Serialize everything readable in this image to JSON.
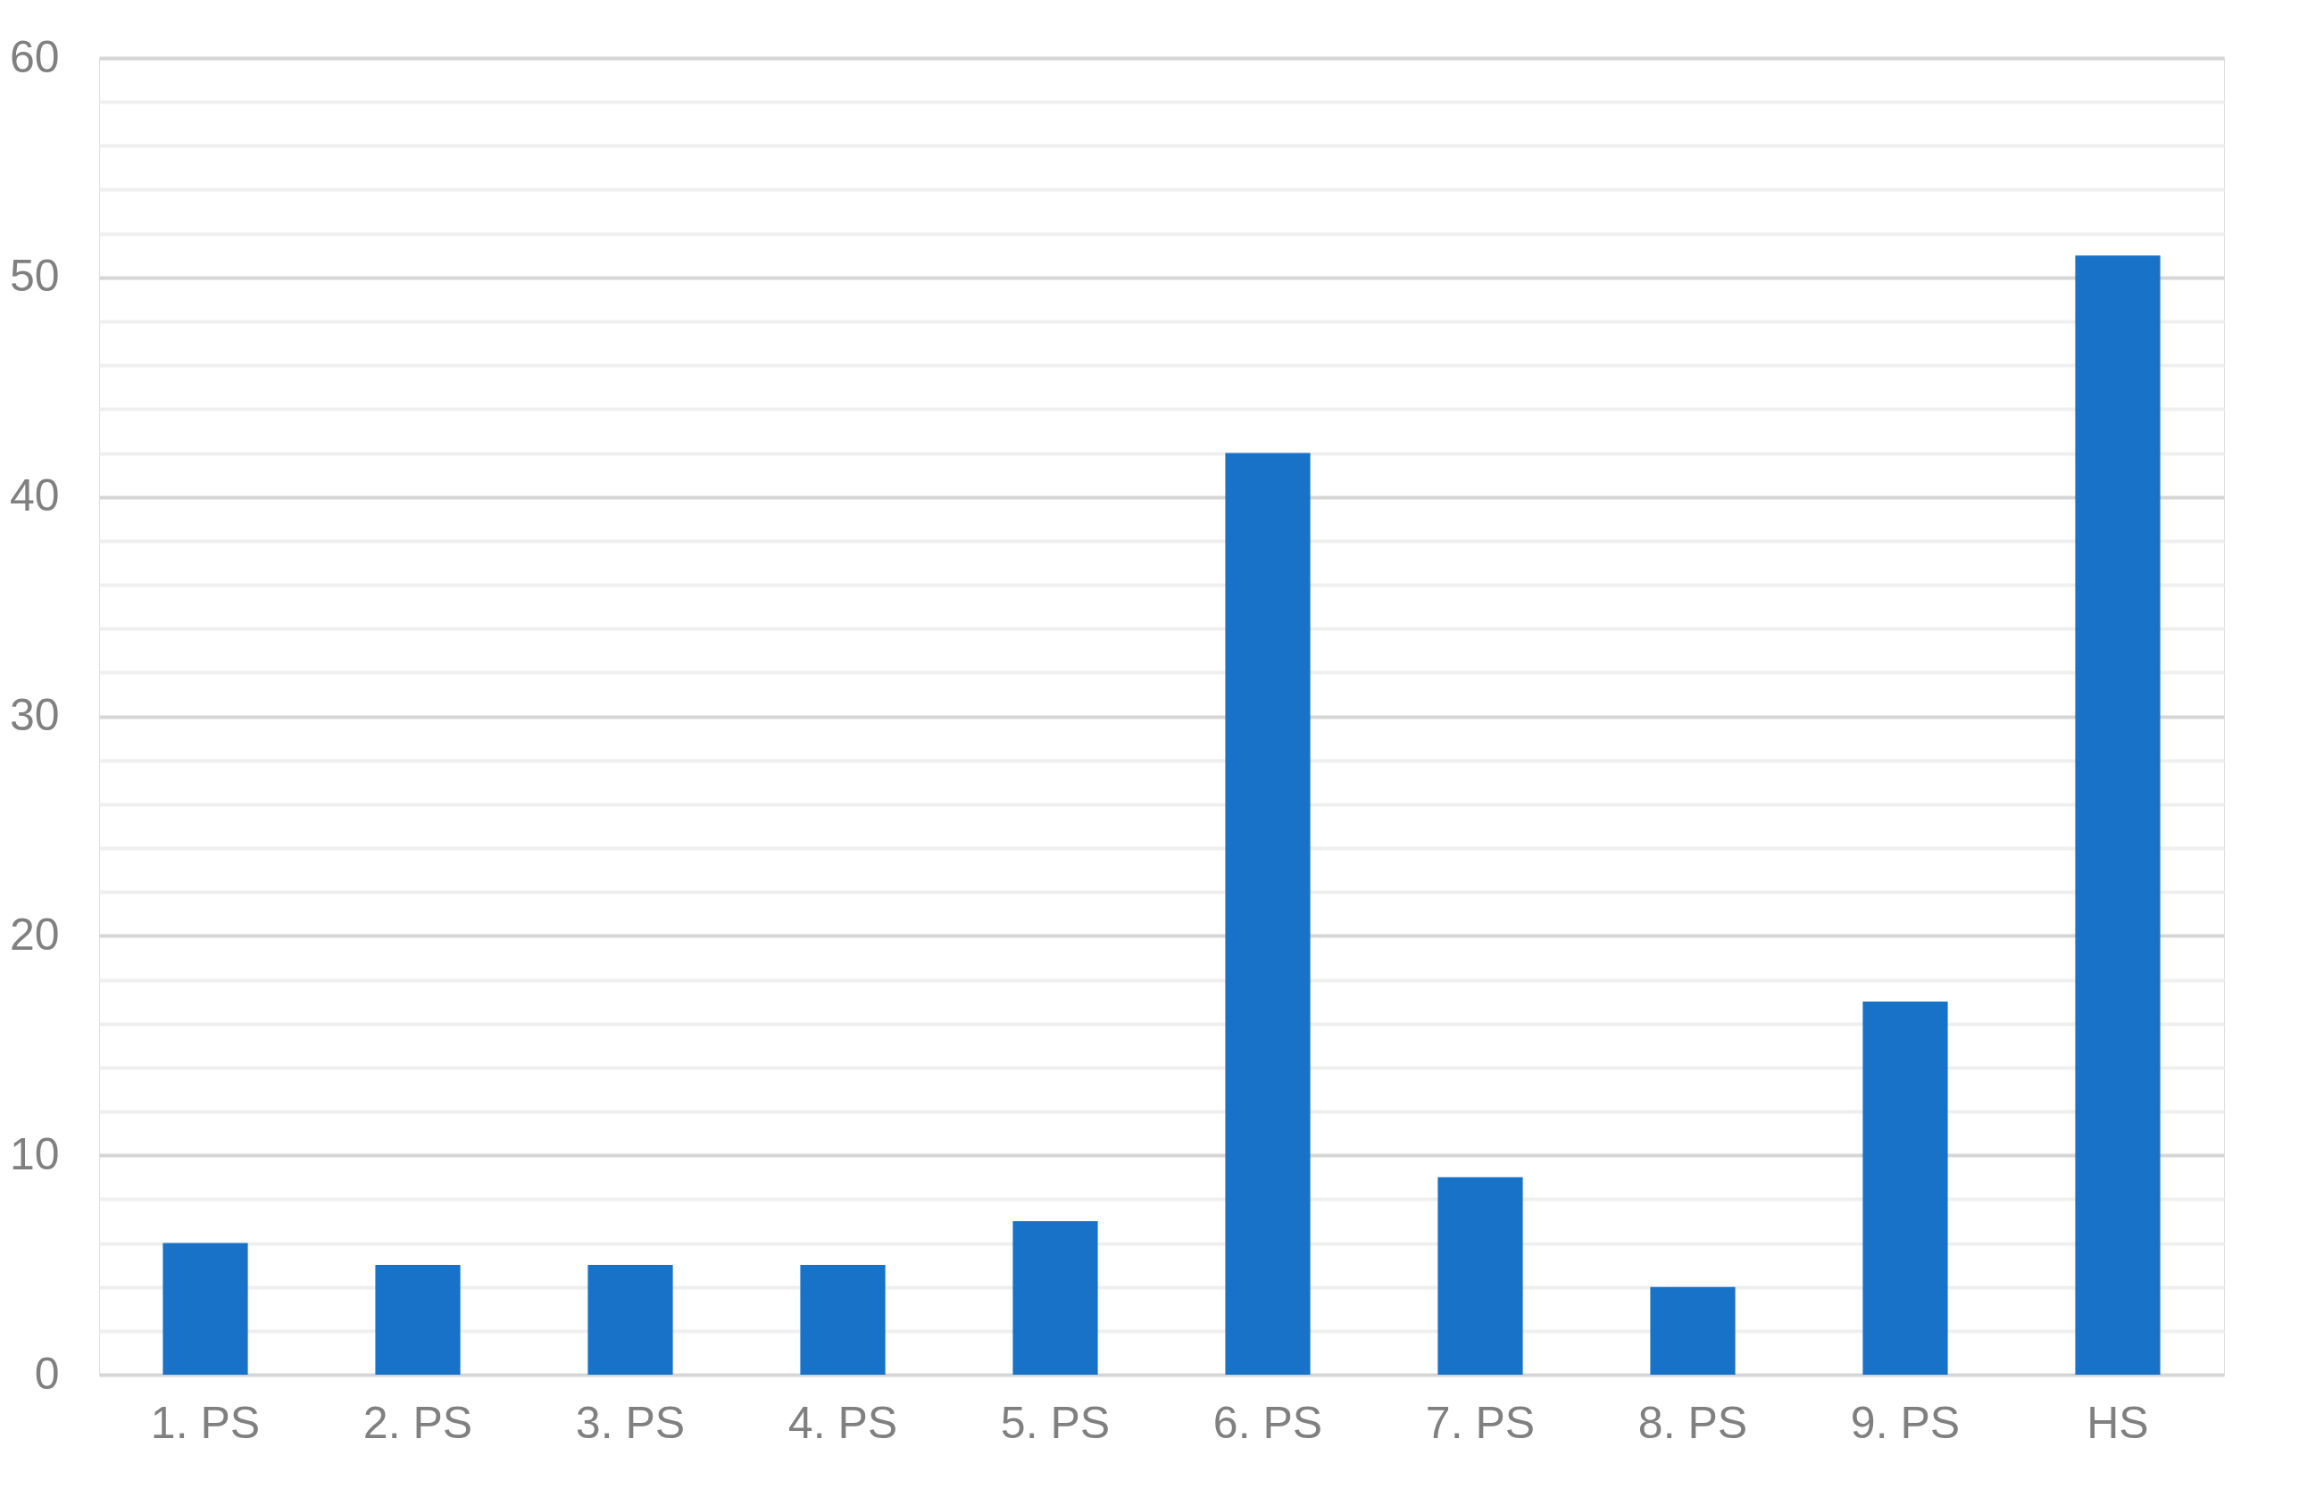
{
  "chart_data": {
    "type": "bar",
    "categories": [
      "1. PS",
      "2. PS",
      "3. PS",
      "4. PS",
      "5. PS",
      "6. PS",
      "7. PS",
      "8. PS",
      "9. PS",
      "HS"
    ],
    "values": [
      6,
      5,
      5,
      5,
      7,
      42,
      9,
      4,
      17,
      51
    ],
    "color": "#1772c8",
    "ylim": [
      0,
      60
    ],
    "yticks": [
      0,
      {
        "value": 2,
        "label": null
      },
      {
        "value": 4,
        "label": null
      },
      {
        "value": 6,
        "label": null
      },
      {
        "value": 8,
        "label": null
      },
      10,
      {
        "value": 12,
        "label": null
      },
      {
        "value": 14,
        "label": null
      },
      {
        "value": 16,
        "label": null
      },
      {
        "value": 18,
        "label": null
      },
      20,
      {
        "value": 22,
        "label": null
      },
      {
        "value": 24,
        "label": null
      },
      {
        "value": 26,
        "label": null
      },
      {
        "value": 28,
        "label": null
      },
      30,
      {
        "value": 32,
        "label": null
      },
      {
        "value": 34,
        "label": null
      },
      {
        "value": 36,
        "label": null
      },
      {
        "value": 38,
        "label": null
      },
      40,
      {
        "value": 42,
        "label": null
      },
      {
        "value": 44,
        "label": null
      },
      {
        "value": 46,
        "label": null
      },
      {
        "value": 48,
        "label": null
      },
      50,
      {
        "value": 52,
        "label": null
      },
      {
        "value": 54,
        "label": null
      },
      {
        "value": 56,
        "label": null
      },
      {
        "value": 58,
        "label": null
      },
      60
    ],
    "grid": "y"
  }
}
